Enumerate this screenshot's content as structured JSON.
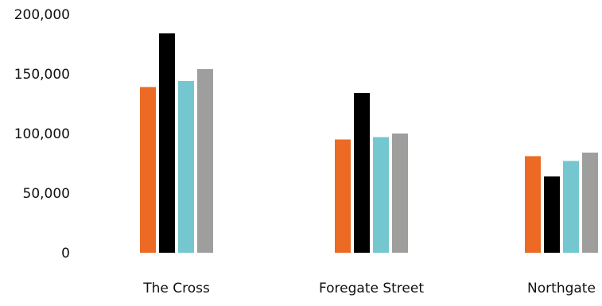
{
  "chart_data": {
    "type": "bar",
    "title": "",
    "xlabel": "",
    "ylabel": "",
    "ylim": [
      0,
      200000
    ],
    "yticks": [
      0,
      50000,
      100000,
      150000,
      200000
    ],
    "ytick_labels": [
      "0",
      "50,000",
      "100,000",
      "150,000",
      "200,000"
    ],
    "grid": false,
    "legend": "none",
    "categories": [
      "The Cross",
      "Foregate Street",
      "Northgate"
    ],
    "series": [
      {
        "color": "#ec6a24",
        "values": [
          139000,
          95000,
          81000
        ]
      },
      {
        "color": "#000000",
        "values": [
          184000,
          134000,
          64000
        ]
      },
      {
        "color": "#74c7cf",
        "values": [
          144000,
          97000,
          77000
        ]
      },
      {
        "color": "#9e9e9c",
        "values": [
          154000,
          100000,
          84000
        ]
      }
    ]
  }
}
